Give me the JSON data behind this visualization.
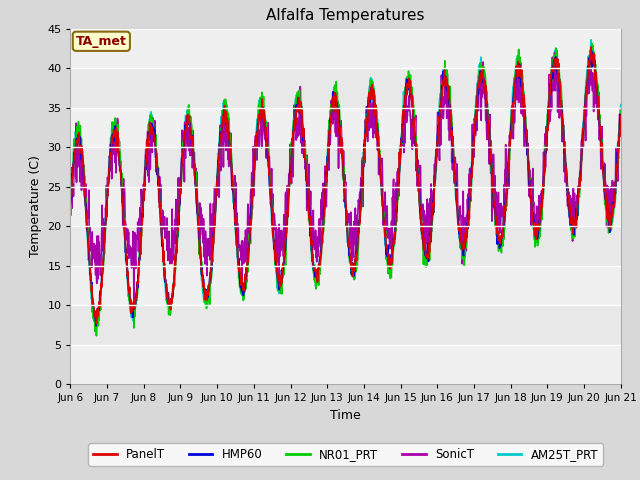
{
  "title": "Alfalfa Temperatures",
  "xlabel": "Time",
  "ylabel": "Temperature (C)",
  "ylim": [
    0,
    45
  ],
  "yticks": [
    0,
    5,
    10,
    15,
    20,
    25,
    30,
    35,
    40,
    45
  ],
  "series_order": [
    "AM25T_PRT",
    "SonicT",
    "NR01_PRT",
    "HMP60",
    "PanelT"
  ],
  "series": {
    "PanelT": {
      "color": "#dd0000",
      "lw": 1.2
    },
    "HMP60": {
      "color": "#0000dd",
      "lw": 1.2
    },
    "NR01_PRT": {
      "color": "#00cc00",
      "lw": 1.2
    },
    "SonicT": {
      "color": "#aa00aa",
      "lw": 1.2
    },
    "AM25T_PRT": {
      "color": "#00cccc",
      "lw": 1.2
    }
  },
  "xtick_labels": [
    "Jun 6",
    "Jun 7",
    "Jun 8",
    "Jun 9",
    "Jun 10",
    "Jun 11",
    "Jun 12",
    "Jun 13",
    "Jun 14",
    "Jun 15",
    "Jun 16",
    "Jun 17",
    "Jun 18",
    "Jun 19",
    "Jun 20",
    "Jun 21"
  ],
  "annotation_text": "TA_met",
  "bg_color": "#e8e8e8",
  "bg_band_light": "#f0f0f0",
  "grid_color": "white",
  "fig_color": "#d8d8d8"
}
